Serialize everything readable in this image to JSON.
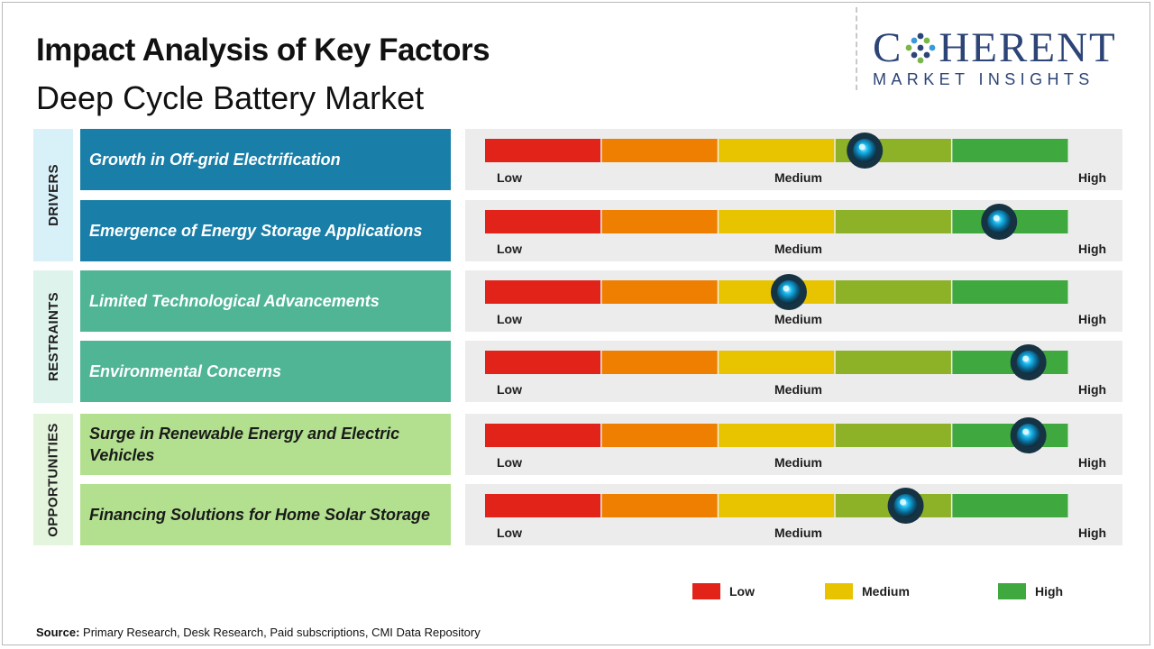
{
  "title": "Impact Analysis of Key Factors",
  "subtitle": "Deep Cycle Battery Market",
  "logo": {
    "top": "COHERENT",
    "bottom": "MARKET INSIGHTS"
  },
  "groups": [
    {
      "label": "DRIVERS",
      "color": "#d8f0f8"
    },
    {
      "label": "RESTRAINTS",
      "color": "#ddf3ec"
    },
    {
      "label": "OPPORTUNITIES",
      "color": "#e4f5de"
    }
  ],
  "scale_labels": {
    "low": "Low",
    "medium": "Medium",
    "high": "High"
  },
  "segment_colors": [
    "#e2231a",
    "#ee7f00",
    "#e8c400",
    "#8db227",
    "#3fa83f"
  ],
  "legend": [
    {
      "label": "Low",
      "color": "#e2231a"
    },
    {
      "label": "Medium",
      "color": "#e8c400"
    },
    {
      "label": "High",
      "color": "#3fa83f"
    }
  ],
  "source": {
    "label": "Source:",
    "text": "Primary Research, Desk Research, Paid subscriptions, CMI Data Repository"
  },
  "chart_data": {
    "type": "bar",
    "categories": [
      "Growth in Off-grid Electrification",
      "Emergence of Energy Storage Applications",
      "Limited Technological Advancements",
      "Environmental Concerns",
      "Surge in Renewable Energy and Electric Vehicles",
      "Financing Solutions for Home Solar Storage"
    ],
    "groups": [
      "DRIVERS",
      "DRIVERS",
      "RESTRAINTS",
      "RESTRAINTS",
      "OPPORTUNITIES",
      "OPPORTUNITIES"
    ],
    "values": [
      0.65,
      0.88,
      0.52,
      0.93,
      0.93,
      0.72
    ],
    "ylim": [
      0,
      1
    ],
    "axis_labels": [
      "Low",
      "Medium",
      "High"
    ]
  }
}
